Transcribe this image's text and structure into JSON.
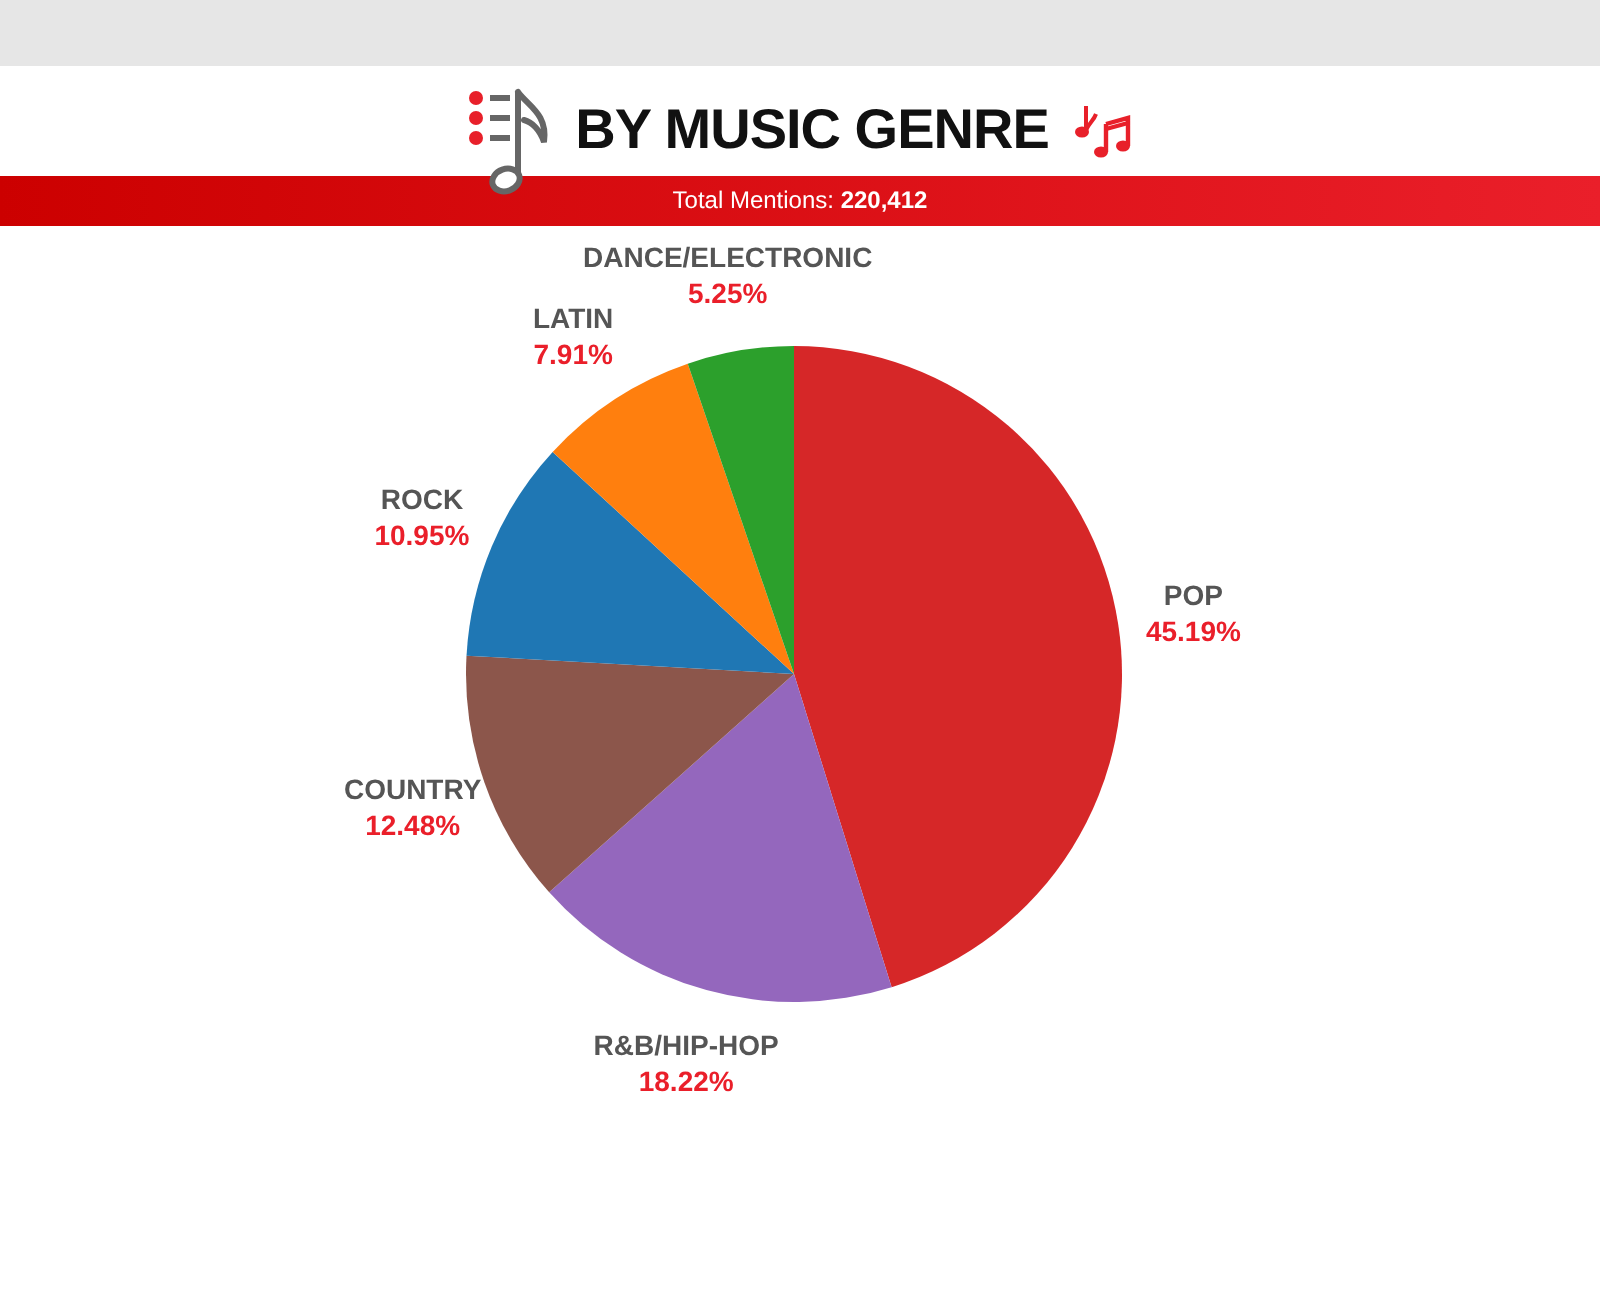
{
  "chart_data": {
    "type": "pie",
    "title": "BY MUSIC GENRE",
    "subtitle": "Total Mentions: 220,412",
    "categories": [
      "POP",
      "R&B/HIP-HOP",
      "COUNTRY",
      "ROCK",
      "LATIN",
      "DANCE/ELECTRONIC"
    ],
    "values": [
      45.19,
      18.22,
      12.48,
      10.95,
      7.91,
      5.25
    ],
    "colors": [
      "#d62728",
      "#9467bd",
      "#8c564b",
      "#1f77b4",
      "#ff7f0e",
      "#2ca02c"
    ],
    "value_labels": [
      "45.19%",
      "18.22%",
      "12.48%",
      "10.95%",
      "7.91%",
      "5.25%"
    ]
  }
}
